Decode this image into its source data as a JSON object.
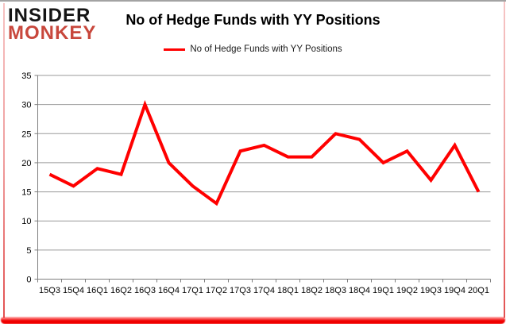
{
  "logo": {
    "line1": "INSIDER",
    "line2": "MONKEY",
    "accent_color": "#c8473c"
  },
  "title": "No of Hedge Funds with YY Positions",
  "legend": {
    "label": "No of Hedge Funds with YY Positions"
  },
  "chart_data": {
    "type": "line",
    "title": "No of Hedge Funds with YY Positions",
    "categories": [
      "15Q3",
      "15Q4",
      "16Q1",
      "16Q2",
      "16Q3",
      "16Q4",
      "17Q1",
      "17Q2",
      "17Q3",
      "17Q4",
      "18Q1",
      "18Q2",
      "18Q3",
      "18Q4",
      "19Q1",
      "19Q2",
      "19Q3",
      "19Q4",
      "20Q1"
    ],
    "series": [
      {
        "name": "No of Hedge Funds with YY Positions",
        "color": "#ff0000",
        "values": [
          18,
          16,
          19,
          18,
          30,
          20,
          16,
          13,
          22,
          23,
          21,
          21,
          25,
          24,
          20,
          22,
          17,
          23,
          15
        ]
      }
    ],
    "xlabel": "",
    "ylabel": "",
    "ylim": [
      0,
      35
    ],
    "ytick_step": 5,
    "grid": true,
    "legend_position": "top-center",
    "colors": {
      "gridline": "#9a9a9a",
      "axis": "#7f7f7f",
      "tick_label": "#000000"
    }
  }
}
